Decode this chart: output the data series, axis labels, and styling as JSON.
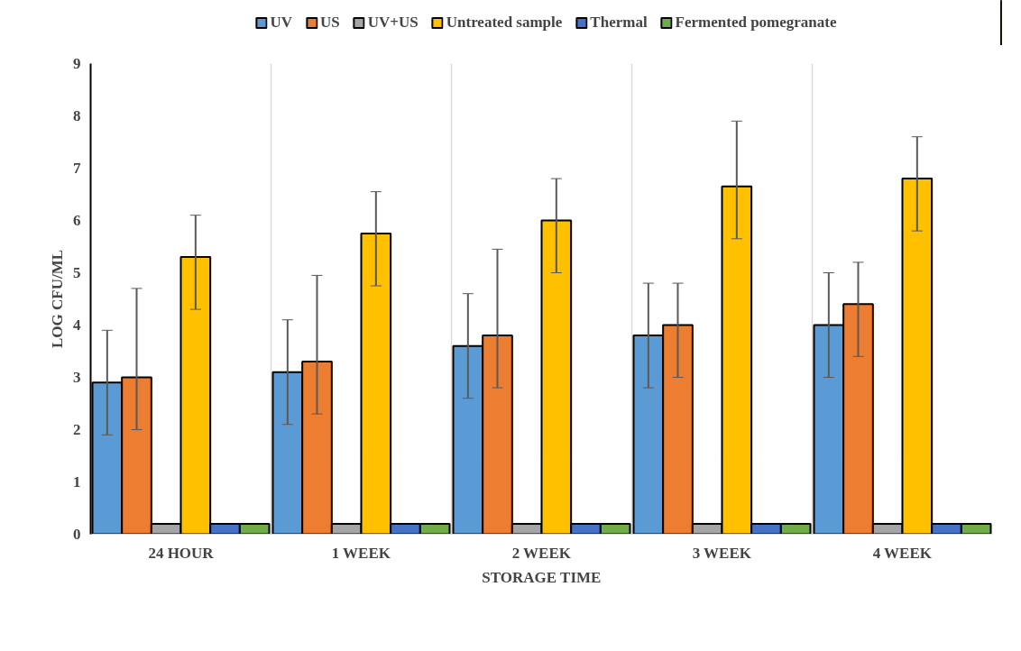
{
  "chart_data": {
    "type": "bar",
    "xlabel": "STORAGE TIME",
    "ylabel": "LOG CFU/ML",
    "categories": [
      "24 HOUR",
      "1 WEEK",
      "2 WEEK",
      "3 WEEK",
      "4 WEEK"
    ],
    "series": [
      {
        "name": "UV",
        "color": "#5b9bd5",
        "values": [
          2.9,
          3.1,
          3.6,
          3.8,
          4.0
        ],
        "errors": [
          [
            1.9,
            3.9
          ],
          [
            2.1,
            4.1
          ],
          [
            2.6,
            4.6
          ],
          [
            2.8,
            4.8
          ],
          [
            3.0,
            5.0
          ]
        ]
      },
      {
        "name": "US",
        "color": "#ed7d31",
        "values": [
          3.0,
          3.3,
          3.8,
          4.0,
          4.4
        ],
        "errors": [
          [
            2.0,
            4.7
          ],
          [
            2.3,
            4.95
          ],
          [
            2.8,
            5.45
          ],
          [
            3.0,
            4.8
          ],
          [
            3.4,
            5.2
          ]
        ]
      },
      {
        "name": "UV+US",
        "color": "#a5a5a5",
        "values": [
          0.2,
          0.2,
          0.2,
          0.2,
          0.2
        ]
      },
      {
        "name": "Untreated sample",
        "color": "#ffc000",
        "values": [
          5.3,
          5.75,
          6.0,
          6.65,
          6.8
        ],
        "errors": [
          [
            4.3,
            6.1
          ],
          [
            4.75,
            6.55
          ],
          [
            5.0,
            6.8
          ],
          [
            5.65,
            7.9
          ],
          [
            5.8,
            7.6
          ]
        ]
      },
      {
        "name": "Thermal",
        "color": "#4472c4",
        "values": [
          0.2,
          0.2,
          0.2,
          0.2,
          0.2
        ]
      },
      {
        "name": "Fermented pomegranate",
        "color": "#70ad47",
        "values": [
          0.2,
          0.2,
          0.2,
          0.2,
          0.2
        ]
      }
    ],
    "ylim": [
      0,
      9
    ],
    "yticks": [
      0,
      1,
      2,
      3,
      4,
      5,
      6,
      7,
      8,
      9
    ],
    "grid": "x",
    "legend": "top"
  }
}
